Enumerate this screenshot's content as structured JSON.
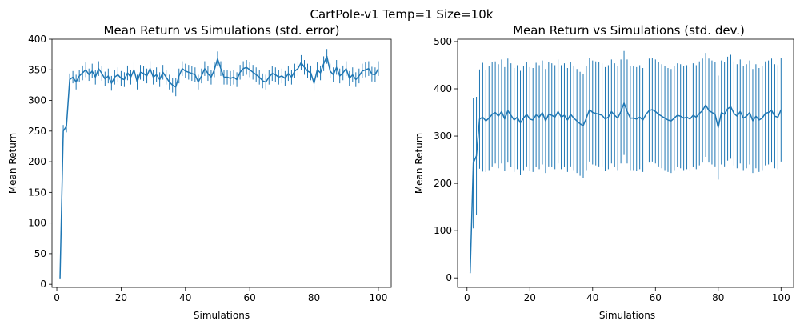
{
  "figure": {
    "suptitle": "CartPole-v1 Temp=1 Size=10k"
  },
  "colors": {
    "series": "#1f77b4",
    "axis": "#000000"
  },
  "chart_data": [
    {
      "type": "line",
      "title": "Mean Return vs Simulations (std. error)",
      "xlabel": "Simulations",
      "ylabel": "Mean Return",
      "xlim": [
        -1.5,
        104
      ],
      "ylim": [
        -5,
        400
      ],
      "xticks": [
        0,
        20,
        40,
        60,
        80,
        100
      ],
      "yticks": [
        0,
        50,
        100,
        150,
        200,
        250,
        300,
        350,
        400
      ],
      "grid": false,
      "error_type": "std. error",
      "x": [
        1,
        2,
        3,
        4,
        5,
        6,
        7,
        8,
        9,
        10,
        11,
        12,
        13,
        14,
        15,
        16,
        17,
        18,
        19,
        20,
        21,
        22,
        23,
        24,
        25,
        26,
        27,
        28,
        29,
        30,
        31,
        32,
        33,
        34,
        35,
        36,
        37,
        38,
        39,
        40,
        41,
        42,
        43,
        44,
        45,
        46,
        47,
        48,
        49,
        50,
        51,
        52,
        53,
        54,
        55,
        56,
        57,
        58,
        59,
        60,
        61,
        62,
        63,
        64,
        65,
        66,
        67,
        68,
        69,
        70,
        71,
        72,
        73,
        74,
        75,
        76,
        77,
        78,
        79,
        80,
        81,
        82,
        83,
        84,
        85,
        86,
        87,
        88,
        89,
        90,
        91,
        92,
        93,
        94,
        95,
        96,
        97,
        98,
        99,
        100
      ],
      "y": [
        10,
        250,
        258,
        334,
        338,
        330,
        340,
        345,
        350,
        342,
        348,
        338,
        352,
        344,
        335,
        340,
        328,
        338,
        342,
        336,
        334,
        345,
        338,
        350,
        330,
        346,
        344,
        340,
        352,
        338,
        342,
        334,
        346,
        338,
        330,
        325,
        322,
        340,
        352,
        348,
        346,
        344,
        342,
        330,
        340,
        352,
        344,
        338,
        350,
        368,
        352,
        338,
        338,
        336,
        338,
        334,
        346,
        352,
        354,
        350,
        346,
        342,
        338,
        332,
        330,
        338,
        344,
        342,
        338,
        340,
        336,
        344,
        338,
        348,
        352,
        362,
        354,
        348,
        345,
        328,
        350,
        345,
        360,
        372,
        348,
        342,
        354,
        340,
        345,
        352,
        336,
        342,
        334,
        340,
        348,
        350,
        352,
        343,
        342,
        352
      ],
      "err": [
        2,
        10,
        10,
        10,
        10,
        12,
        10,
        12,
        12,
        10,
        12,
        12,
        12,
        12,
        12,
        12,
        12,
        12,
        12,
        12,
        12,
        12,
        12,
        12,
        12,
        12,
        12,
        12,
        12,
        12,
        12,
        12,
        12,
        12,
        12,
        12,
        15,
        12,
        12,
        12,
        12,
        12,
        12,
        12,
        12,
        12,
        12,
        12,
        12,
        12,
        12,
        12,
        12,
        12,
        12,
        12,
        12,
        12,
        12,
        12,
        12,
        12,
        12,
        12,
        12,
        12,
        12,
        12,
        12,
        12,
        12,
        12,
        12,
        12,
        12,
        12,
        12,
        12,
        12,
        12,
        12,
        12,
        12,
        12,
        12,
        12,
        12,
        12,
        12,
        12,
        12,
        12,
        12,
        12,
        12,
        12,
        12,
        12,
        12,
        12
      ]
    },
    {
      "type": "line",
      "title": "Mean Return vs Simulations (std. dev.)",
      "xlabel": "Simulations",
      "ylabel": "Mean Return",
      "xlim": [
        -3,
        104
      ],
      "ylim": [
        -20,
        505
      ],
      "xticks": [
        0,
        20,
        40,
        60,
        80,
        100
      ],
      "yticks": [
        0,
        100,
        200,
        300,
        400,
        500
      ],
      "grid": false,
      "error_type": "std. dev.",
      "x": [
        1,
        2,
        3,
        4,
        5,
        6,
        7,
        8,
        9,
        10,
        11,
        12,
        13,
        14,
        15,
        16,
        17,
        18,
        19,
        20,
        21,
        22,
        23,
        24,
        25,
        26,
        27,
        28,
        29,
        30,
        31,
        32,
        33,
        34,
        35,
        36,
        37,
        38,
        39,
        40,
        41,
        42,
        43,
        44,
        45,
        46,
        47,
        48,
        49,
        50,
        51,
        52,
        53,
        54,
        55,
        56,
        57,
        58,
        59,
        60,
        61,
        62,
        63,
        64,
        65,
        66,
        67,
        68,
        69,
        70,
        71,
        72,
        73,
        74,
        75,
        76,
        77,
        78,
        79,
        80,
        81,
        82,
        83,
        84,
        85,
        86,
        87,
        88,
        89,
        90,
        91,
        92,
        93,
        94,
        95,
        96,
        97,
        98,
        99,
        100
      ],
      "y": [
        10,
        243,
        258,
        336,
        340,
        332,
        338,
        346,
        350,
        342,
        352,
        336,
        354,
        344,
        334,
        340,
        328,
        338,
        346,
        336,
        334,
        345,
        340,
        350,
        332,
        346,
        344,
        340,
        352,
        340,
        344,
        334,
        346,
        338,
        332,
        326,
        322,
        338,
        356,
        350,
        348,
        346,
        344,
        336,
        340,
        352,
        344,
        338,
        352,
        370,
        352,
        338,
        338,
        336,
        340,
        334,
        346,
        354,
        356,
        352,
        346,
        342,
        338,
        334,
        332,
        338,
        344,
        342,
        338,
        340,
        336,
        344,
        340,
        348,
        354,
        366,
        354,
        350,
        346,
        318,
        350,
        346,
        358,
        362,
        348,
        342,
        352,
        338,
        342,
        350,
        332,
        342,
        334,
        338,
        348,
        350,
        354,
        342,
        340,
        356
      ],
      "err": [
        0,
        138,
        125,
        105,
        115,
        108,
        110,
        110,
        108,
        110,
        110,
        110,
        110,
        110,
        110,
        110,
        110,
        110,
        110,
        110,
        110,
        110,
        110,
        110,
        110,
        110,
        110,
        110,
        110,
        110,
        110,
        110,
        110,
        110,
        110,
        110,
        110,
        110,
        110,
        110,
        110,
        110,
        110,
        110,
        110,
        110,
        110,
        110,
        110,
        110,
        110,
        110,
        110,
        110,
        110,
        110,
        110,
        110,
        110,
        110,
        110,
        110,
        110,
        110,
        110,
        110,
        110,
        110,
        110,
        110,
        110,
        110,
        110,
        110,
        110,
        110,
        110,
        110,
        110,
        110,
        110,
        110,
        110,
        110,
        110,
        110,
        110,
        110,
        110,
        110,
        110,
        110,
        110,
        110,
        110,
        110,
        110,
        110,
        110,
        110
      ]
    }
  ]
}
